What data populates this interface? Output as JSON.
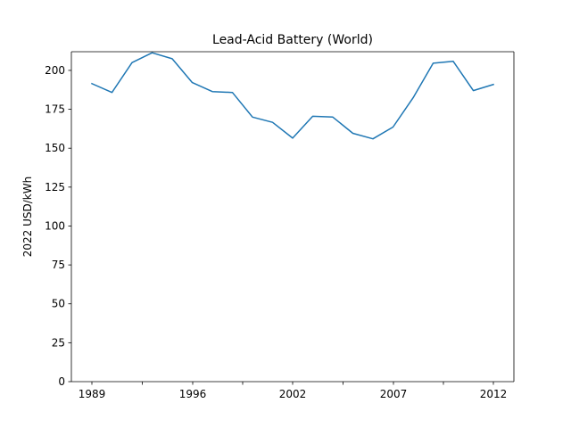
{
  "chart_data": {
    "type": "line",
    "title": "Lead-Acid Battery (World)",
    "xlabel": "",
    "ylabel": "2022 USD/kWh",
    "x": [
      1989,
      1990,
      1991,
      1992,
      1993,
      1994,
      1995,
      1996,
      1997,
      1998,
      1999,
      2000,
      2001,
      2002,
      2003,
      2004,
      2005,
      2006,
      2007,
      2008,
      2009,
      2010,
      2011,
      2012
    ],
    "series": [
      {
        "values": [
          191.5,
          185.8,
          205.0,
          211.3,
          207.5,
          192.2,
          186.4,
          185.8,
          170.0,
          166.6,
          156.5,
          170.5,
          170.0,
          159.6,
          156.0,
          163.6,
          182.4,
          204.6,
          205.8,
          187.0,
          191.0
        ],
        "x": [
          1989,
          1990,
          1991,
          1992,
          1993,
          1994,
          1995,
          1996,
          1997,
          1998,
          1999,
          2000,
          2001,
          2002,
          2003,
          2004,
          2005,
          2006,
          2007,
          2008,
          2009
        ]
      }
    ],
    "xticks": [
      1989,
      1996,
      2002,
      2007,
      2012
    ],
    "xtick_labels": [
      "1989",
      "1996",
      "2002",
      "2007",
      "2012"
    ],
    "yticks": [
      0,
      25,
      50,
      75,
      100,
      125,
      150,
      175,
      200
    ],
    "ytick_labels": [
      "0",
      "25",
      "50",
      "75",
      "100",
      "125",
      "150",
      "175",
      "200"
    ],
    "ylim": [
      0,
      212
    ],
    "line_color": "#1f77b4",
    "grid": false
  }
}
